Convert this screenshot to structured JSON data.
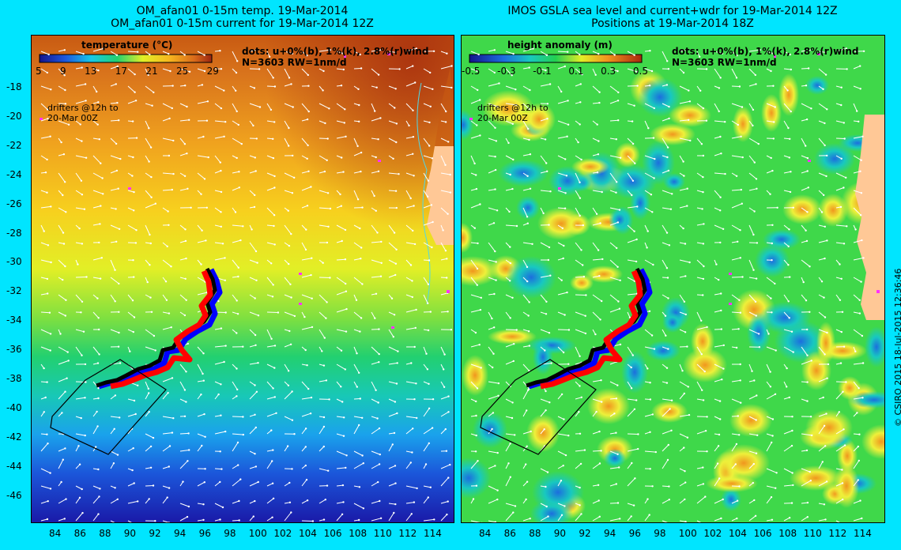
{
  "left_panel": {
    "title_line1": "OM_afan01 0-15m temp. 19-Mar-2014",
    "title_line2": "OM_afan01 0-15m current for 19-Mar-2014 12Z",
    "colorbar_title": "temperature (°C)",
    "colorbar_ticks": [
      "5",
      "9",
      "13",
      "17",
      "21",
      "25",
      "29"
    ],
    "dots_line1": "dots: u+0%(b), 1%(k), 2.8%(r)wind",
    "dots_line2": "N=3603 RW=1nm/d",
    "drifters_line1": "drifters @12h to",
    "drifters_line2": "20-Mar 00Z"
  },
  "right_panel": {
    "title_line1": "IMOS GSLA sea level and current+wdr for 19-Mar-2014 12Z",
    "title_line2": "Positions at 19-Mar-2014 18Z",
    "colorbar_title": "height anomaly  (m)",
    "colorbar_ticks": [
      "-0.5",
      "-0.3",
      "-0.1",
      "0.1",
      "0.3",
      "0.5"
    ],
    "dots_line1": "dots: u+0%(b), 1%(k), 2.8%(r)wind",
    "dots_line2": "N=3603 RW=1nm/d",
    "drifters_line1": "drifters @12h to",
    "drifters_line2": "20-Mar 00Z"
  },
  "lat_labels": [
    "-18",
    "-20",
    "-22",
    "-24",
    "-26",
    "-28",
    "-30",
    "-32",
    "-34",
    "-36",
    "-38",
    "-40",
    "-42",
    "-44",
    "-46"
  ],
  "lon_labels": [
    "84",
    "86",
    "88",
    "90",
    "92",
    "94",
    "96",
    "98",
    "100",
    "102",
    "104",
    "106",
    "108",
    "110",
    "112",
    "114"
  ],
  "credit": "© CSIRO 2015   18-Jul-2015 12:36:46",
  "colors": {
    "background": "#00e5ff",
    "land": "#ffc896",
    "drift_blue": "#0000ff",
    "drift_black": "#000000",
    "drift_red": "#ff0000"
  }
}
